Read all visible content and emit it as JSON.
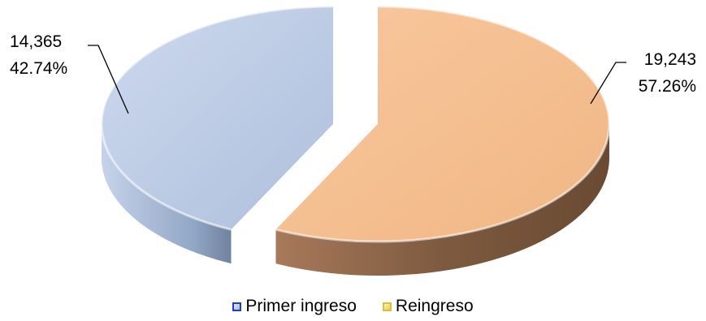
{
  "chart_data": {
    "type": "pie",
    "style": "3d-exploded",
    "title": "",
    "slices": [
      {
        "name": "Primer ingreso",
        "value": 14365,
        "value_label": "14,365",
        "percent_label": "42.74%",
        "color": "#b9cbe5",
        "side_color": "#8fa4c4"
      },
      {
        "name": "Reingreso",
        "value": 19243,
        "value_label": "19,243",
        "percent_label": "57.26%",
        "color": "#f5bd8f",
        "side_color": "#7b573c"
      }
    ],
    "legend_position": "bottom",
    "legend_swatch_colors": [
      "#1f3fbf",
      "#d8c13a"
    ]
  }
}
